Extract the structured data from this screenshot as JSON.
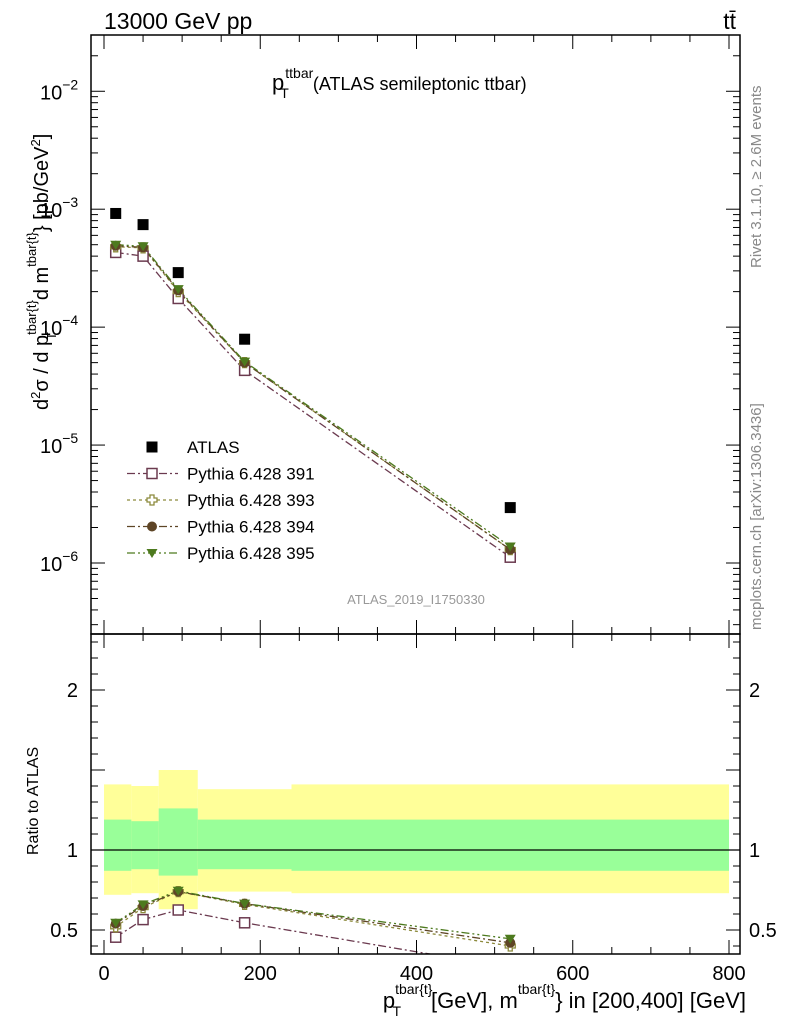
{
  "header": {
    "left": "13000 GeV pp",
    "right": "tt̄"
  },
  "main_title": {
    "p": "p",
    "sup": "ttbar",
    "sub": "T",
    "rest": "(ATLAS semileptonic ttbar)"
  },
  "side_text": {
    "rivet": "Rivet 3.1.10, ≥ 2.6M events",
    "mcplots": "mcplots.cern.ch [arXiv:1306.3436]"
  },
  "watermark": "ATLAS_2019_I1750330",
  "y_axis_top": "d²σ / d p_T^{tbar{t}} d m^{tbar{t}} [pb/GeV²]",
  "y_axis_bottom": "Ratio to ATLAS",
  "x_axis": "p_T^{tbar{t}}[GeV], m^{tbar{t}} in [200,400] [GeV]",
  "colors": {
    "atlas": "#000000",
    "p391": "#6b3a4f",
    "p393": "#8c8a3c",
    "p394": "#5e4526",
    "p395": "#4d7a1e",
    "band_outer": "#ffff99",
    "band_inner": "#99ff99"
  },
  "chart_data": [
    {
      "type": "scatter",
      "title": "p_T^{ttbar} (ATLAS semileptonic ttbar)",
      "xlabel": "p_T^{tbar{t}}[GeV], m^{tbar{t}} in [200,400] [GeV]",
      "ylabel": "d²σ / d p_T^{tbar{t}} d m^{tbar{t}} [pb/GeV²]",
      "yscale": "log",
      "xlim": [
        -20,
        810
      ],
      "ylim": [
        2.5e-07,
        0.03
      ],
      "y_ticks": [
        {
          "value": 1e-06,
          "label": "10",
          "exp": "−6"
        },
        {
          "value": 1e-05,
          "label": "10",
          "exp": "−5"
        },
        {
          "value": 0.0001,
          "label": "10",
          "exp": "−4"
        },
        {
          "value": 0.001,
          "label": "10",
          "exp": "−3"
        },
        {
          "value": 0.01,
          "label": "10",
          "exp": "−2"
        }
      ],
      "legend_position": "lower-left",
      "series": [
        {
          "name": "ATLAS",
          "marker": "square-filled",
          "x": [
            15,
            50,
            95,
            180,
            520
          ],
          "y": [
            0.00092,
            0.00074,
            0.00029,
            7.9e-05,
            2.95e-06
          ]
        },
        {
          "name": "Pythia 6.428 391",
          "marker": "square-open",
          "x": [
            15,
            50,
            95,
            180,
            520
          ],
          "y": [
            0.00043,
            0.0004,
            0.000175,
            4.3e-05,
            1.12e-06
          ]
        },
        {
          "name": "Pythia 6.428 393",
          "marker": "cross-open",
          "x": [
            15,
            50,
            95,
            180,
            520
          ],
          "y": [
            0.00048,
            0.00047,
            0.0002,
            5e-05,
            1.3e-06
          ]
        },
        {
          "name": "Pythia 6.428 394",
          "marker": "circle-filled",
          "x": [
            15,
            50,
            95,
            180,
            520
          ],
          "y": [
            0.00049,
            0.000475,
            0.000205,
            5e-05,
            1.3e-06
          ]
        },
        {
          "name": "Pythia 6.428 395",
          "marker": "triangle-down-filled",
          "x": [
            15,
            50,
            95,
            180,
            520
          ],
          "y": [
            0.0005,
            0.000485,
            0.00021,
            5.1e-05,
            1.38e-06
          ]
        }
      ]
    },
    {
      "type": "line",
      "xlabel": "p_T^{tbar{t}}[GeV], m^{tbar{t}} in [200,400] [GeV]",
      "ylabel": "Ratio to ATLAS",
      "xlim": [
        -20,
        810
      ],
      "ylim": [
        0.35,
        2.35
      ],
      "x_ticks": [
        0,
        200,
        400,
        600,
        800
      ],
      "y_ticks": [
        0.5,
        1,
        2
      ],
      "bands": {
        "edges": [
          0,
          35,
          70,
          120,
          240,
          800
        ],
        "inner_low": [
          0.87,
          0.88,
          0.84,
          0.88,
          0.87
        ],
        "inner_high": [
          1.19,
          1.18,
          1.26,
          1.19,
          1.19
        ],
        "outer_low": [
          0.72,
          0.73,
          0.63,
          0.74,
          0.73
        ],
        "outer_high": [
          1.41,
          1.4,
          1.5,
          1.38,
          1.41
        ]
      },
      "series": [
        {
          "name": "Pythia 6.428 391",
          "x": [
            15,
            50,
            95,
            180,
            520
          ],
          "y": [
            0.455,
            0.565,
            0.625,
            0.545,
            0.265
          ]
        },
        {
          "name": "Pythia 6.428 393",
          "x": [
            15,
            50,
            95,
            180,
            520
          ],
          "y": [
            0.52,
            0.64,
            0.74,
            0.66,
            0.4
          ]
        },
        {
          "name": "Pythia 6.428 394",
          "x": [
            15,
            50,
            95,
            180,
            520
          ],
          "y": [
            0.54,
            0.65,
            0.74,
            0.665,
            0.42
          ]
        },
        {
          "name": "Pythia 6.428 395",
          "x": [
            15,
            50,
            95,
            180,
            520
          ],
          "y": [
            0.545,
            0.66,
            0.745,
            0.665,
            0.445
          ]
        }
      ]
    }
  ]
}
